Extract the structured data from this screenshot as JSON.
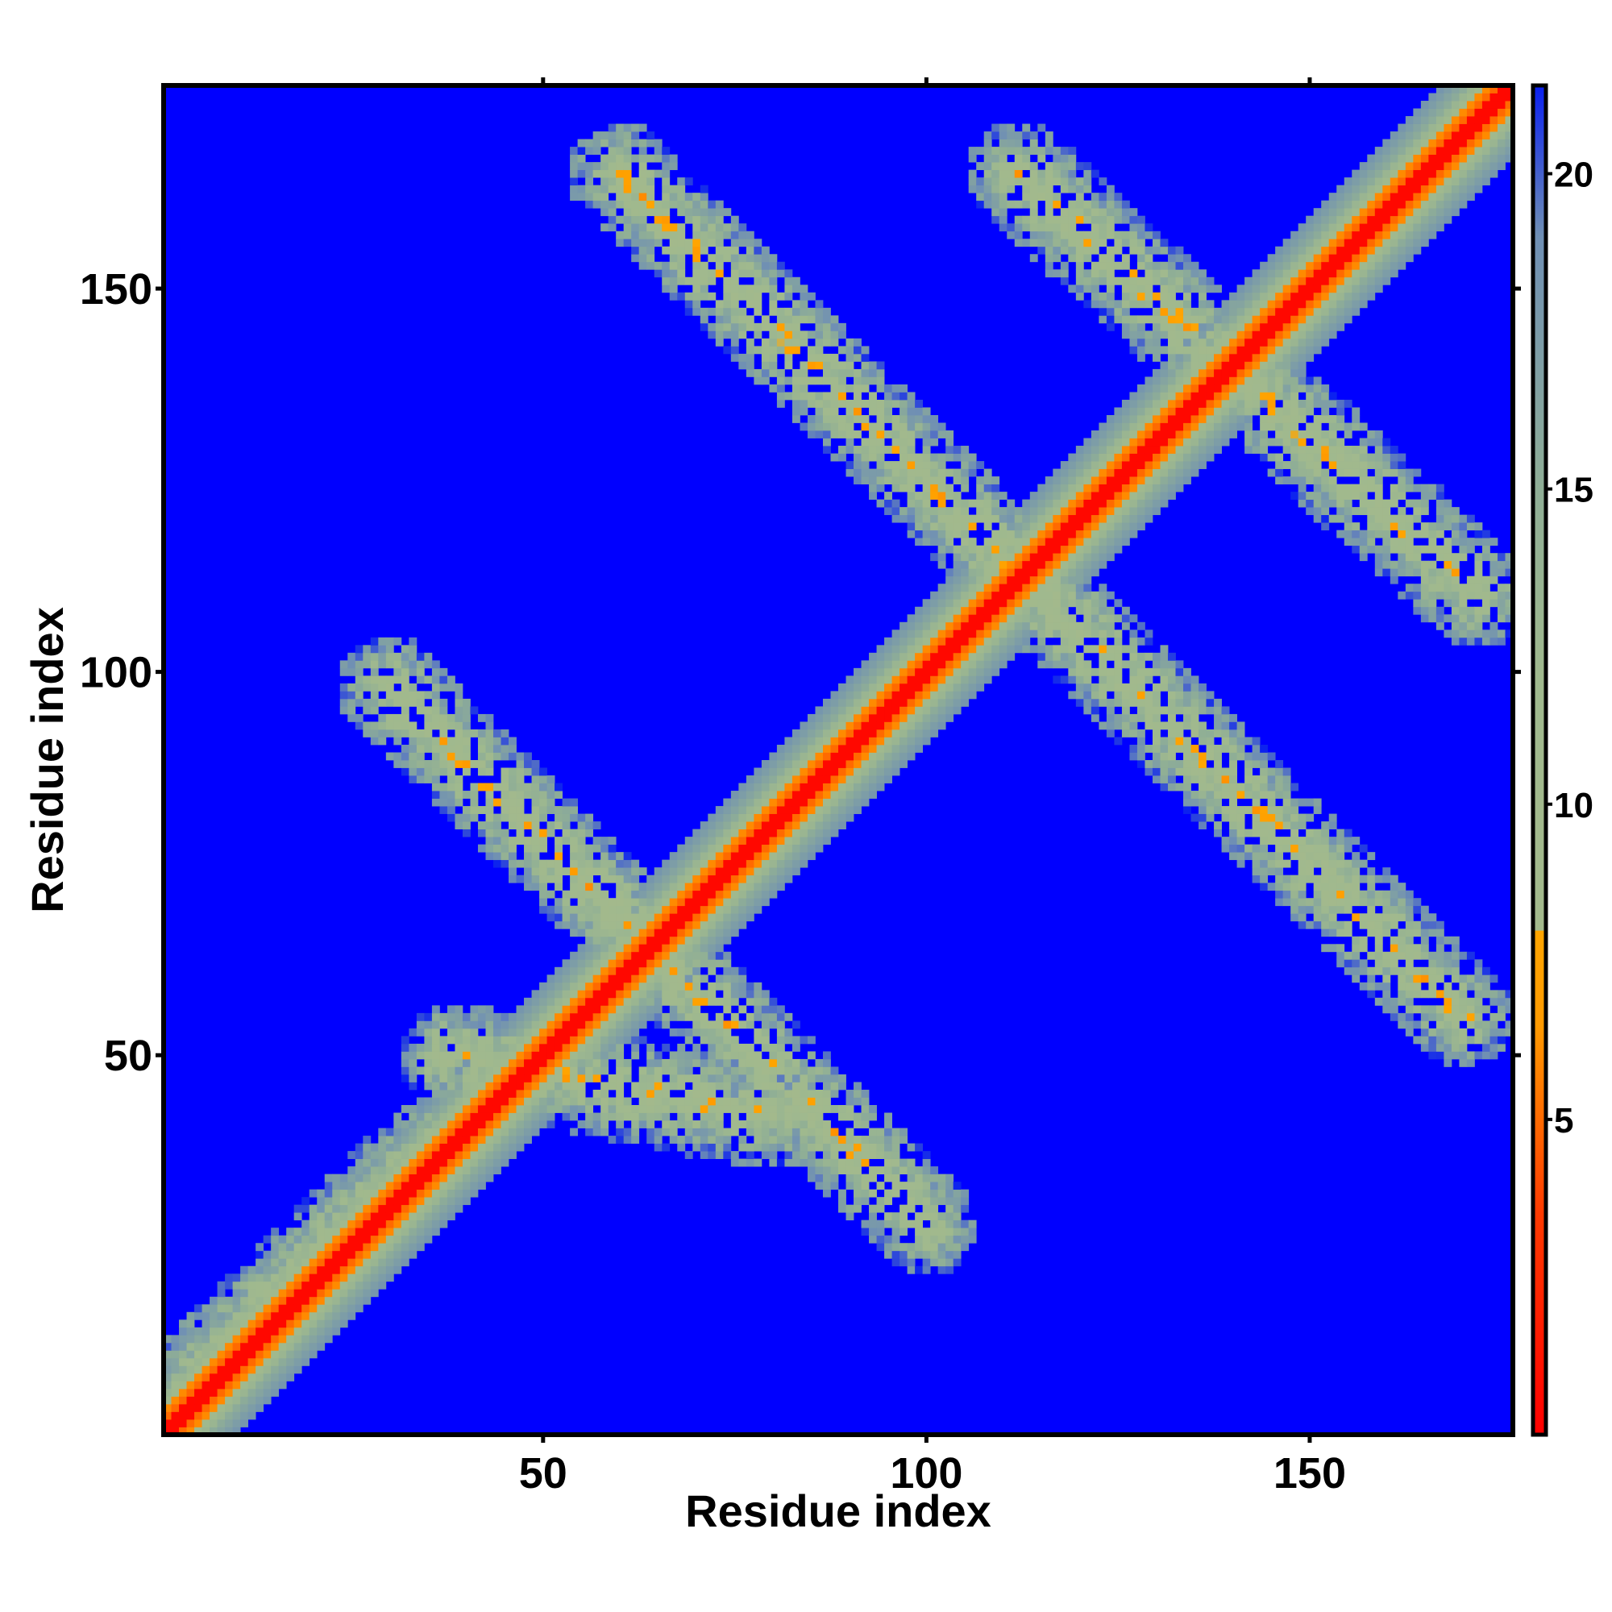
{
  "chart_data": {
    "type": "heatmap",
    "xlabel": "Residue index",
    "ylabel": "Residue index",
    "xlim": [
      1,
      176
    ],
    "ylim": [
      1,
      176
    ],
    "x_ticks": [
      50,
      100,
      150
    ],
    "y_ticks": [
      50,
      100,
      150
    ],
    "colorbar": {
      "range": [
        0,
        21.4
      ],
      "ticks": [
        5,
        10,
        15,
        20
      ],
      "stops": [
        {
          "value": 0,
          "color": "#ff0000"
        },
        {
          "value": 3.5,
          "color": "#ff3a00"
        },
        {
          "value": 6.5,
          "color": "#ff9a00"
        },
        {
          "value": 7.99,
          "color": "#ffa500"
        },
        {
          "value": 8.0,
          "color": "#a3b98c"
        },
        {
          "value": 12,
          "color": "#a0b98e"
        },
        {
          "value": 15,
          "color": "#8fae96"
        },
        {
          "value": 19,
          "color": "#6f8fb4"
        },
        {
          "value": 21.4,
          "color": "#0a20f0"
        }
      ],
      "background_color": "#0000ff"
    },
    "structure": {
      "diagonal": "distance 0 on diagonal, increasing to ~20 at |i-j| ~ 10",
      "bands": [
        {
          "from": [
            5,
            8
          ],
          "to": [
            36,
            38
          ],
          "label": "short strand pairing"
        },
        {
          "from": [
            30,
            98
          ],
          "to": [
            100,
            28
          ],
          "label": "anti-diagonal band"
        },
        {
          "from": [
            60,
            165
          ],
          "to": [
            170,
            55
          ],
          "label": "anti-diagonal band"
        },
        {
          "from": [
            112,
            165
          ],
          "to": [
            172,
            110
          ],
          "label": "upper-right band"
        },
        {
          "from": [
            38,
            50
          ],
          "to": [
            80,
            42
          ],
          "label": "lower-left band"
        }
      ]
    },
    "colors": {
      "background": "#0000ff",
      "axis": "#000000"
    }
  }
}
